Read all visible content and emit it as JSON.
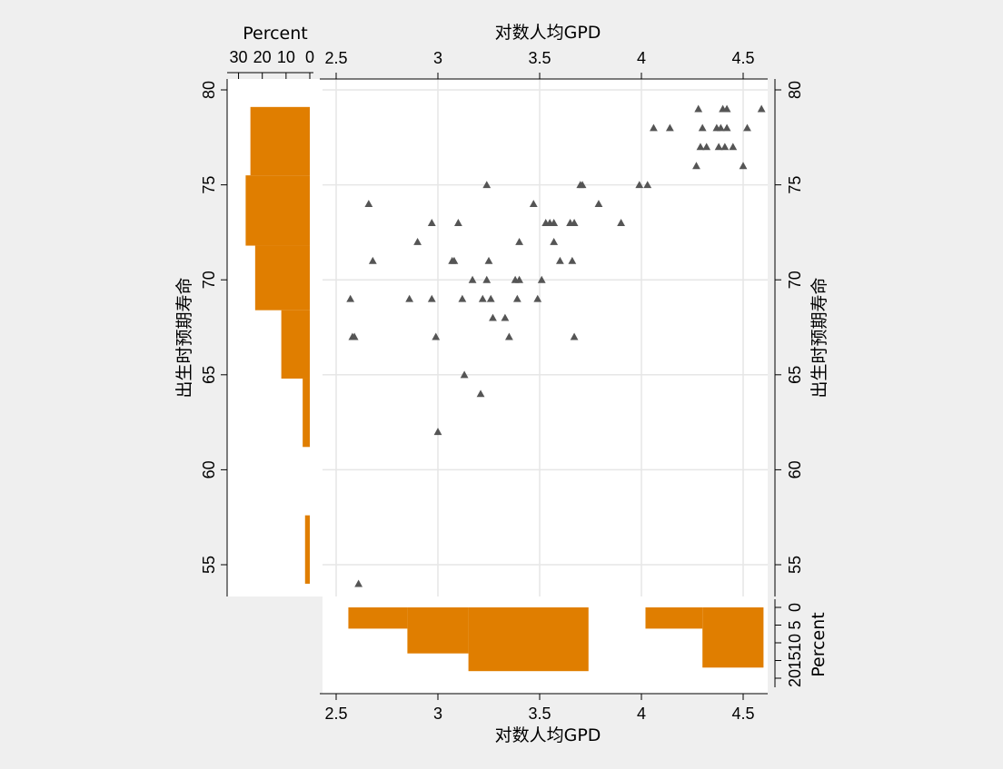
{
  "chart_data": {
    "type": "scatter",
    "x_title": "对数人均GPD",
    "y_title": "出生时预期寿命",
    "hist_title": "Percent",
    "xlim": [
      2.5,
      4.6
    ],
    "ylim": [
      53.5,
      80
    ],
    "x_ticks": [
      "2.5",
      "3",
      "3.5",
      "4",
      "4.5"
    ],
    "y_ticks": [
      "55",
      "60",
      "65",
      "70",
      "75",
      "80"
    ],
    "hx_ticks": [
      "0",
      "5",
      "10",
      "15",
      "20"
    ],
    "hy_ticks": [
      "30",
      "20",
      "10",
      "0"
    ],
    "grid": true,
    "colors": {
      "histogram": "#e07e00",
      "marker": "#555555",
      "background": "#efefef",
      "plot": "#ffffff"
    },
    "marker": "triangle",
    "points": [
      [
        2.57,
        69
      ],
      [
        2.58,
        67
      ],
      [
        2.59,
        67
      ],
      [
        2.61,
        54
      ],
      [
        2.66,
        74
      ],
      [
        2.68,
        71
      ],
      [
        2.86,
        69
      ],
      [
        2.9,
        72
      ],
      [
        2.97,
        73
      ],
      [
        2.97,
        69
      ],
      [
        2.99,
        67
      ],
      [
        3.0,
        62
      ],
      [
        3.07,
        71
      ],
      [
        3.08,
        71
      ],
      [
        3.1,
        73
      ],
      [
        3.12,
        69
      ],
      [
        3.13,
        65
      ],
      [
        3.17,
        70
      ],
      [
        3.21,
        64
      ],
      [
        3.22,
        69
      ],
      [
        3.24,
        75
      ],
      [
        3.24,
        70
      ],
      [
        3.25,
        71
      ],
      [
        3.26,
        69
      ],
      [
        3.27,
        68
      ],
      [
        3.33,
        68
      ],
      [
        3.35,
        67
      ],
      [
        3.38,
        70
      ],
      [
        3.39,
        69
      ],
      [
        3.4,
        70
      ],
      [
        3.4,
        72
      ],
      [
        3.47,
        74
      ],
      [
        3.49,
        69
      ],
      [
        3.51,
        70
      ],
      [
        3.53,
        73
      ],
      [
        3.55,
        73
      ],
      [
        3.57,
        72
      ],
      [
        3.57,
        73
      ],
      [
        3.6,
        71
      ],
      [
        3.65,
        73
      ],
      [
        3.66,
        71
      ],
      [
        3.67,
        73
      ],
      [
        3.67,
        67
      ],
      [
        3.7,
        75
      ],
      [
        3.71,
        75
      ],
      [
        3.79,
        74
      ],
      [
        3.9,
        73
      ],
      [
        3.99,
        75
      ],
      [
        4.03,
        75
      ],
      [
        4.06,
        78
      ],
      [
        4.14,
        78
      ],
      [
        4.27,
        76
      ],
      [
        4.28,
        79
      ],
      [
        4.29,
        77
      ],
      [
        4.3,
        78
      ],
      [
        4.32,
        77
      ],
      [
        4.37,
        78
      ],
      [
        4.38,
        77
      ],
      [
        4.39,
        78
      ],
      [
        4.4,
        79
      ],
      [
        4.41,
        77
      ],
      [
        4.42,
        79
      ],
      [
        4.42,
        78
      ],
      [
        4.45,
        77
      ],
      [
        4.5,
        76
      ],
      [
        4.52,
        78
      ],
      [
        4.59,
        79
      ]
    ],
    "x_histogram": [
      {
        "from": 2.56,
        "to": 2.85,
        "percent": 6
      },
      {
        "from": 2.85,
        "to": 3.15,
        "percent": 13
      },
      {
        "from": 3.15,
        "to": 3.74,
        "percent": 18
      },
      {
        "from": 3.74,
        "to": 4.02,
        "percent": 0
      },
      {
        "from": 4.02,
        "to": 4.3,
        "percent": 6
      },
      {
        "from": 4.3,
        "to": 4.6,
        "percent": 17
      }
    ],
    "y_histogram": [
      {
        "from": 54,
        "to": 57.6,
        "percent": 2
      },
      {
        "from": 57.6,
        "to": 61.2,
        "percent": 0
      },
      {
        "from": 61.2,
        "to": 64.8,
        "percent": 3
      },
      {
        "from": 64.8,
        "to": 68.4,
        "percent": 12
      },
      {
        "from": 68.4,
        "to": 71.8,
        "percent": 23
      },
      {
        "from": 71.8,
        "to": 75.5,
        "percent": 27
      },
      {
        "from": 75.5,
        "to": 79.1,
        "percent": 25
      }
    ]
  }
}
